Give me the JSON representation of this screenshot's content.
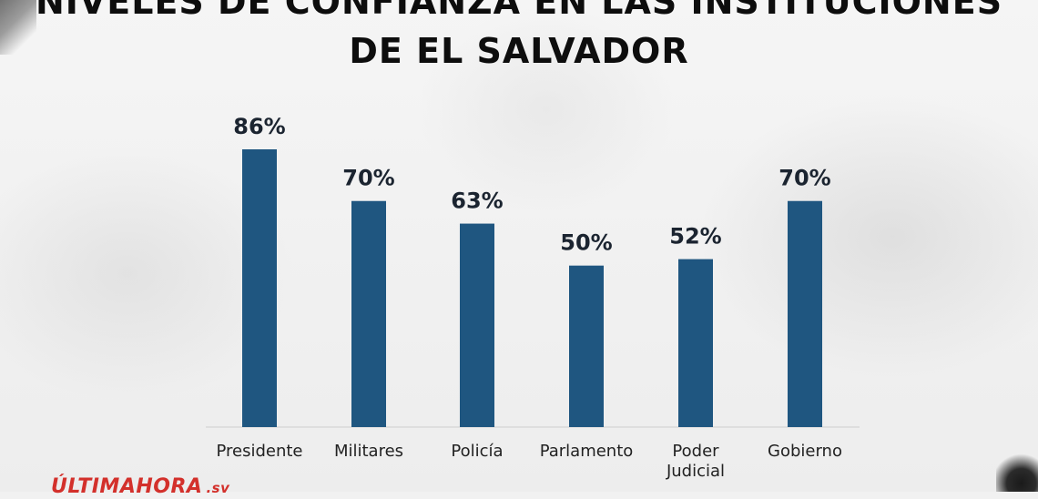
{
  "title_lines": [
    "NIVELES DE CONFIANZA EN LAS INSTITUCIONES",
    "DE EL SALVADOR"
  ],
  "logo": {
    "main": "ÚLTIMAHORA",
    "suffix": ".sv"
  },
  "colors": {
    "bar": "#1f5680",
    "title": "#0d0d0d",
    "logo": "#d3302b"
  },
  "chart_data": {
    "type": "bar",
    "title": "NIVELES DE CONFIANZA EN LAS INSTITUCIONES DE EL SALVADOR",
    "categories": [
      [
        "Presidente"
      ],
      [
        "Militares"
      ],
      [
        "Policía"
      ],
      [
        "Parlamento"
      ],
      [
        "Poder",
        "Judicial"
      ],
      [
        "Gobierno"
      ]
    ],
    "values": [
      86,
      70,
      63,
      50,
      52,
      70
    ],
    "value_labels": [
      "86%",
      "70%",
      "63%",
      "50%",
      "52%",
      "70%"
    ],
    "unit": "%",
    "ylim": [
      0,
      100
    ],
    "grid": false,
    "legend": "none"
  }
}
